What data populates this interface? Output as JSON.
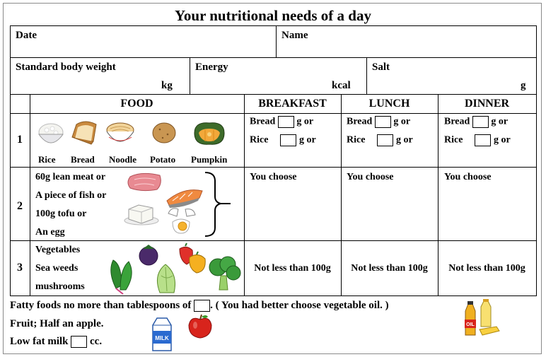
{
  "title": "Your nutritional needs of a day",
  "header": {
    "date_label": "Date",
    "name_label": "Name",
    "weight_label": "Standard body weight",
    "weight_unit": "kg",
    "energy_label": "Energy",
    "energy_unit": "kcal",
    "salt_label": "Salt",
    "salt_unit": "g"
  },
  "columns": {
    "food": "FOOD",
    "breakfast": "BREAKFAST",
    "lunch": "LUNCH",
    "dinner": "DINNER"
  },
  "rows": [
    {
      "num": "1",
      "captions": [
        "Rice",
        "Bread",
        "Noodle",
        "Potato",
        "Pumpkin"
      ],
      "meal_line1_prefix": "Bread",
      "meal_line1_suffix": "g or",
      "meal_line2_prefix": "Rice",
      "meal_line2_suffix": "g or"
    },
    {
      "num": "2",
      "food_lines": [
        "60g lean meat or",
        "A piece of fish or",
        "100g tofu or",
        "An egg"
      ],
      "meal_text": "You choose"
    },
    {
      "num": "3",
      "food_lines": [
        "Vegetables",
        "Sea weeds",
        "mushrooms"
      ],
      "meal_text": "Not less than 100g"
    }
  ],
  "footer": {
    "fatty_prefix": "Fatty foods no more than tablespoons of",
    "fatty_suffix": ". ( You had better choose vegetable oil. )",
    "fruit": "Fruit; Half an apple.",
    "milk_prefix": "Low fat milk",
    "milk_suffix": "cc.",
    "milk_carton_text": "MILK",
    "oil_bottle_text": "OIL"
  },
  "colors": {
    "grid": "#000000",
    "frame": "#8a8a8a"
  }
}
